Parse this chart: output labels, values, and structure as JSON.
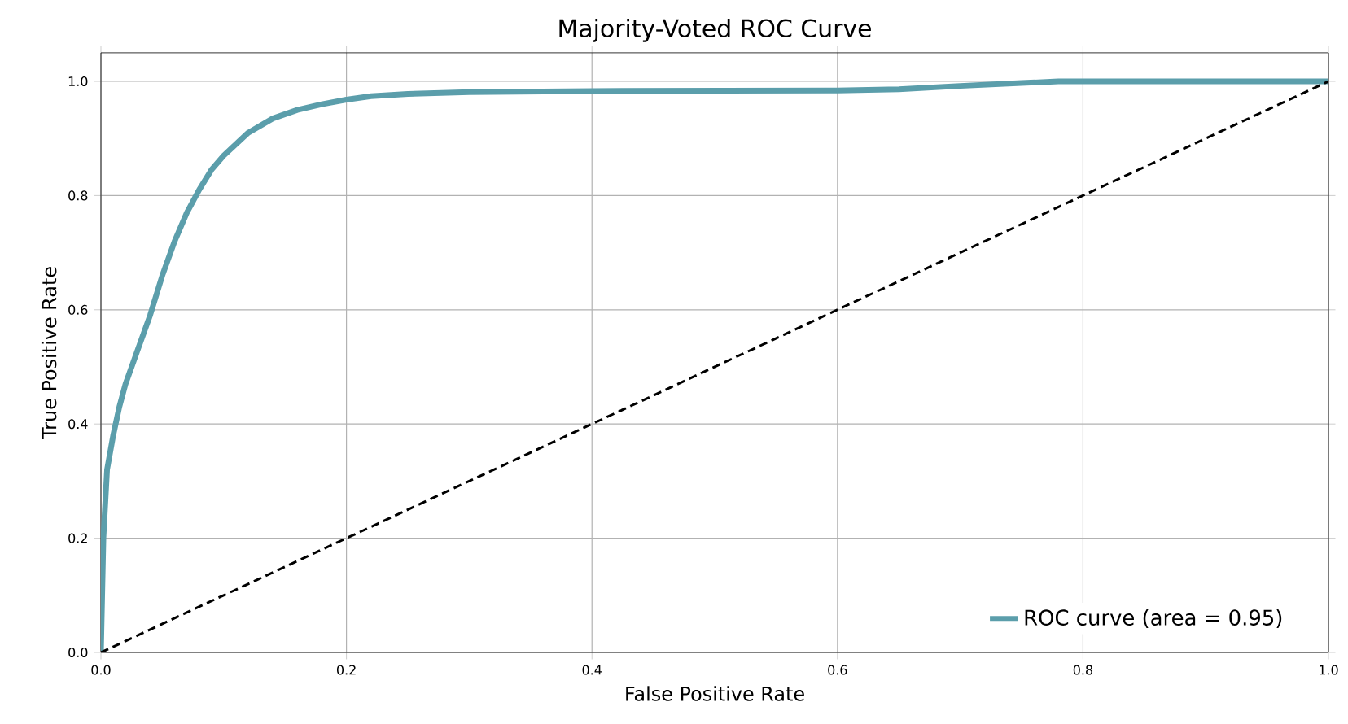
{
  "chart_data": {
    "type": "line",
    "title": "Majority-Voted ROC Curve",
    "xlabel": "False Positive Rate",
    "ylabel": "True Positive Rate",
    "xlim": [
      0,
      1
    ],
    "ylim": [
      0,
      1.05
    ],
    "xticks": [
      {
        "value": 0,
        "label": "0.0"
      },
      0.2,
      0.4,
      0.6,
      0.8,
      {
        "value": 1,
        "label": "1.0"
      }
    ],
    "yticks": [
      {
        "value": 0,
        "label": "0.0"
      },
      0.2,
      0.4,
      0.6,
      0.8,
      {
        "value": 1,
        "label": "1.0"
      }
    ],
    "grid": true,
    "legend": "bottom right",
    "series": [
      {
        "name": "ROC curve (area = 0.95)",
        "color": "#5b9eab",
        "line_style": "solid",
        "x": [
          0,
          0.002,
          0.005,
          0.01,
          0.015,
          0.02,
          0.03,
          0.04,
          0.05,
          0.06,
          0.07,
          0.08,
          0.09,
          0.1,
          0.11,
          0.12,
          0.14,
          0.16,
          0.18,
          0.2,
          0.22,
          0.25,
          0.3,
          0.4,
          0.6,
          0.65,
          0.7,
          0.75,
          0.78,
          1.0
        ],
        "values": [
          0,
          0.2,
          0.32,
          0.38,
          0.43,
          0.47,
          0.53,
          0.59,
          0.66,
          0.72,
          0.77,
          0.81,
          0.845,
          0.87,
          0.89,
          0.91,
          0.935,
          0.95,
          0.96,
          0.968,
          0.974,
          0.978,
          0.981,
          0.983,
          0.984,
          0.986,
          0.992,
          0.997,
          1.0,
          1.0
        ]
      },
      {
        "color": "#000000",
        "line_style": "dashed",
        "x": [
          0,
          1
        ],
        "values": [
          0,
          1
        ]
      }
    ]
  }
}
